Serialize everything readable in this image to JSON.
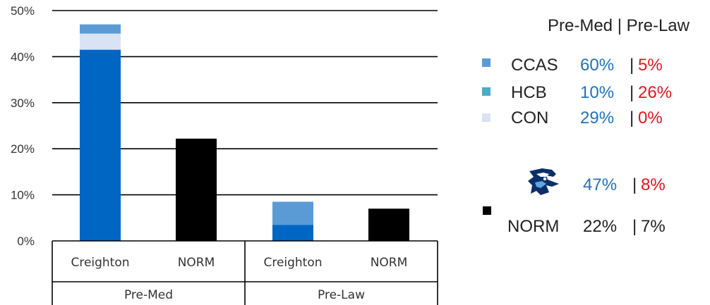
{
  "chart_data": {
    "type": "bar",
    "stacked": true,
    "y_ticks": [
      "0%",
      "10%",
      "20%",
      "30%",
      "40%",
      "50%"
    ],
    "ylim": [
      0,
      50
    ],
    "grid": true,
    "groups": [
      {
        "label": "Pre-Med",
        "categories": [
          "Creighton",
          "NORM"
        ]
      },
      {
        "label": "Pre-Law",
        "categories": [
          "Creighton",
          "NORM"
        ]
      }
    ],
    "bars": [
      {
        "group": "Pre-Med",
        "category": "Creighton",
        "segments": [
          {
            "series": "dark-blue",
            "value": 41.5
          },
          {
            "series": "CON",
            "value": 3.5
          },
          {
            "series": "CCAS",
            "value": 2.0
          }
        ]
      },
      {
        "group": "Pre-Med",
        "category": "NORM",
        "segments": [
          {
            "series": "NORM",
            "value": 22.2
          }
        ]
      },
      {
        "group": "Pre-Law",
        "category": "Creighton",
        "segments": [
          {
            "series": "dark-blue",
            "value": 3.5
          },
          {
            "series": "CCAS",
            "value": 5.0
          }
        ]
      },
      {
        "group": "Pre-Law",
        "category": "NORM",
        "segments": [
          {
            "series": "NORM",
            "value": 7.0
          }
        ]
      }
    ],
    "colors": {
      "dark-blue": "#0066c4",
      "CCAS": "#5b9bd5",
      "HCB": "#4bacc6",
      "CON": "#dae3f3",
      "NORM": "#000000"
    }
  },
  "legend": {
    "header": "Pre-Med  | Pre-Law",
    "items": [
      {
        "name": "CCAS",
        "premed": "60%",
        "sep": "|",
        "prelaw": "5%",
        "swatch": "#5b9bd5"
      },
      {
        "name": "HCB",
        "premed": "10%",
        "sep": "|",
        "prelaw": "26%",
        "swatch": "#4bacc6"
      },
      {
        "name": "CON",
        "premed": "29%",
        "sep": "|",
        "prelaw": "0%",
        "swatch": "#dae3f3"
      }
    ],
    "creighton": {
      "premed": "47%",
      "sep": "|",
      "prelaw": "8%",
      "icon": "bluejay-logo-icon"
    },
    "norm": {
      "name": "NORM",
      "premed": "22%",
      "sep": "|",
      "prelaw": "7%",
      "swatch": "#000000"
    },
    "colors": {
      "premed": "#1e73be",
      "prelaw": "#e8141c",
      "text": "#222222"
    }
  }
}
